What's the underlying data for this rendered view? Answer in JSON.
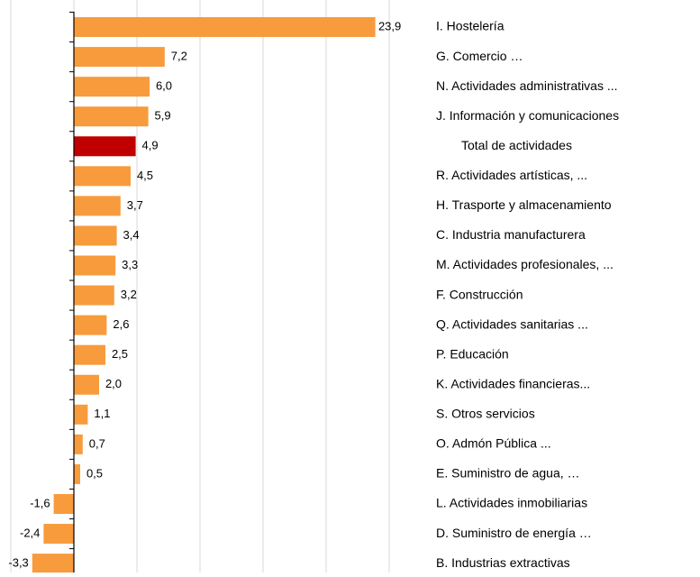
{
  "chart_data": {
    "type": "hbar",
    "categories": [
      "I. Hostelería",
      "G. Comercio …",
      "N. Actividades administrativas ...",
      "J. Información y comunicaciones",
      "Total de actividades",
      "R. Actividades artísticas, ...",
      "H. Trasporte y almacenamiento",
      "C. Industria manufacturera",
      "M. Actividades profesionales, ...",
      "F. Construcción",
      "Q. Actividades sanitarias ...",
      "P. Educación",
      "K. Actividades financieras...",
      "S. Otros servicios",
      "O. Admón Pública ...",
      "E. Suministro de agua, …",
      "L. Actividades inmobiliarias",
      "D. Suministro de energía …",
      "B. Industrias extractivas"
    ],
    "values": [
      23.9,
      7.2,
      6.0,
      5.9,
      4.9,
      4.5,
      3.7,
      3.4,
      3.3,
      3.2,
      2.6,
      2.5,
      2.0,
      1.1,
      0.7,
      0.5,
      -1.6,
      -2.4,
      -3.3
    ],
    "value_labels": [
      "23,9",
      "7,2",
      "6,0",
      "5,9",
      "4,9",
      "4,5",
      "3,7",
      "3,4",
      "3,3",
      "3,2",
      "2,6",
      "2,5",
      "2,0",
      "1,1",
      "0,7",
      "0,5",
      "-1,6",
      "-2,4",
      "-3,3"
    ],
    "colors": [
      "#f79b3d",
      "#f79b3d",
      "#f79b3d",
      "#f79b3d",
      "#c00000",
      "#f79b3d",
      "#f79b3d",
      "#f79b3d",
      "#f79b3d",
      "#f79b3d",
      "#f79b3d",
      "#f79b3d",
      "#f79b3d",
      "#f79b3d",
      "#f79b3d",
      "#f79b3d",
      "#f79b3d",
      "#f79b3d",
      "#f79b3d"
    ],
    "xlim": [
      -5,
      25
    ],
    "xticks": [
      -5,
      0,
      5,
      10,
      15,
      20,
      25
    ],
    "grid": true
  }
}
